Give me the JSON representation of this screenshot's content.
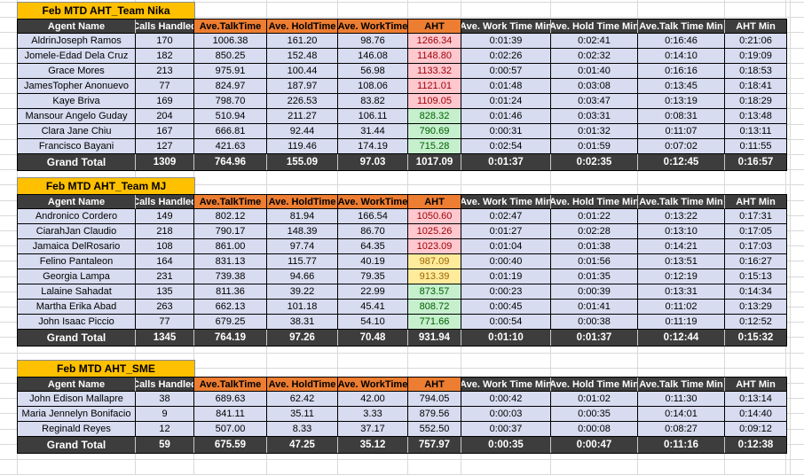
{
  "colors": {
    "title_bg": "#FFC000",
    "orange_header": "#ED7D31",
    "dark_header": "#3D3D3D",
    "row_bg": "#D7DCF0",
    "aht_high_bg": "#FFC7CE",
    "aht_high_text": "#9C0006",
    "aht_mid_bg": "#FFEB9C",
    "aht_mid_text": "#9C6500",
    "aht_low_bg": "#C6EFCE",
    "aht_low_text": "#006100"
  },
  "sheet": {
    "columns": [
      {
        "key": "agent",
        "label": "Agent Name"
      },
      {
        "key": "calls",
        "label": "Calls Handled"
      },
      {
        "key": "talk",
        "label": "Ave.TalkTime"
      },
      {
        "key": "hold",
        "label": "Ave. HoldTime"
      },
      {
        "key": "work",
        "label": "Ave. WorkTime"
      },
      {
        "key": "aht",
        "label": "AHT"
      },
      {
        "key": "work_min",
        "label": "Ave. Work Time Min"
      },
      {
        "key": "hold_min",
        "label": "Ave. Hold Time Min"
      },
      {
        "key": "talk_min",
        "label": "Ave.Talk Time Min"
      },
      {
        "key": "aht_min",
        "label": "AHT Min"
      }
    ],
    "tables": [
      {
        "title": "Feb MTD AHT_Team Nika",
        "rows": [
          {
            "agent": "AldrinJoseph Ramos",
            "calls": "170",
            "talk": "1006.38",
            "hold": "161.20",
            "work": "98.76",
            "aht": "1266.34",
            "aht_level": "high",
            "work_min": "0:01:39",
            "hold_min": "0:02:41",
            "talk_min": "0:16:46",
            "aht_min": "0:21:06"
          },
          {
            "agent": "Jomele-Edad Dela Cruz",
            "calls": "182",
            "talk": "850.25",
            "hold": "152.48",
            "work": "146.08",
            "aht": "1148.80",
            "aht_level": "high",
            "work_min": "0:02:26",
            "hold_min": "0:02:32",
            "talk_min": "0:14:10",
            "aht_min": "0:19:09"
          },
          {
            "agent": "Grace Mores",
            "calls": "213",
            "talk": "975.91",
            "hold": "100.44",
            "work": "56.98",
            "aht": "1133.32",
            "aht_level": "high",
            "work_min": "0:00:57",
            "hold_min": "0:01:40",
            "talk_min": "0:16:16",
            "aht_min": "0:18:53"
          },
          {
            "agent": "JamesTopher Anonuevo",
            "calls": "77",
            "talk": "824.97",
            "hold": "187.97",
            "work": "108.06",
            "aht": "1121.01",
            "aht_level": "high",
            "work_min": "0:01:48",
            "hold_min": "0:03:08",
            "talk_min": "0:13:45",
            "aht_min": "0:18:41"
          },
          {
            "agent": "Kaye Briva",
            "calls": "169",
            "talk": "798.70",
            "hold": "226.53",
            "work": "83.82",
            "aht": "1109.05",
            "aht_level": "high",
            "work_min": "0:01:24",
            "hold_min": "0:03:47",
            "talk_min": "0:13:19",
            "aht_min": "0:18:29"
          },
          {
            "agent": "Mansour Angelo Guday",
            "calls": "204",
            "talk": "510.94",
            "hold": "211.27",
            "work": "106.11",
            "aht": "828.32",
            "aht_level": "low",
            "work_min": "0:01:46",
            "hold_min": "0:03:31",
            "talk_min": "0:08:31",
            "aht_min": "0:13:48"
          },
          {
            "agent": "Clara Jane Chiu",
            "calls": "167",
            "talk": "666.81",
            "hold": "92.44",
            "work": "31.44",
            "aht": "790.69",
            "aht_level": "low",
            "work_min": "0:00:31",
            "hold_min": "0:01:32",
            "talk_min": "0:11:07",
            "aht_min": "0:13:11"
          },
          {
            "agent": "Francisco Bayani",
            "calls": "127",
            "talk": "421.63",
            "hold": "119.46",
            "work": "174.19",
            "aht": "715.28",
            "aht_level": "low",
            "work_min": "0:02:54",
            "hold_min": "0:01:59",
            "talk_min": "0:07:02",
            "aht_min": "0:11:55"
          }
        ],
        "grand_total": {
          "agent": "Grand Total",
          "calls": "1309",
          "talk": "764.96",
          "hold": "155.09",
          "work": "97.03",
          "aht": "1017.09",
          "work_min": "0:01:37",
          "hold_min": "0:02:35",
          "talk_min": "0:12:45",
          "aht_min": "0:16:57"
        }
      },
      {
        "title": "Feb MTD AHT_Team MJ",
        "rows": [
          {
            "agent": "Andronico Cordero",
            "calls": "149",
            "talk": "802.12",
            "hold": "81.94",
            "work": "166.54",
            "aht": "1050.60",
            "aht_level": "high",
            "work_min": "0:02:47",
            "hold_min": "0:01:22",
            "talk_min": "0:13:22",
            "aht_min": "0:17:31"
          },
          {
            "agent": "CiarahJan Claudio",
            "calls": "218",
            "talk": "790.17",
            "hold": "148.39",
            "work": "86.70",
            "aht": "1025.26",
            "aht_level": "high",
            "work_min": "0:01:27",
            "hold_min": "0:02:28",
            "talk_min": "0:13:10",
            "aht_min": "0:17:05"
          },
          {
            "agent": "Jamaica DelRosario",
            "calls": "108",
            "talk": "861.00",
            "hold": "97.74",
            "work": "64.35",
            "aht": "1023.09",
            "aht_level": "high",
            "work_min": "0:01:04",
            "hold_min": "0:01:38",
            "talk_min": "0:14:21",
            "aht_min": "0:17:03"
          },
          {
            "agent": "Felino Pantaleon",
            "calls": "164",
            "talk": "831.13",
            "hold": "115.77",
            "work": "40.19",
            "aht": "987.09",
            "aht_level": "mid",
            "work_min": "0:00:40",
            "hold_min": "0:01:56",
            "talk_min": "0:13:51",
            "aht_min": "0:16:27"
          },
          {
            "agent": "Georgia Lampa",
            "calls": "231",
            "talk": "739.38",
            "hold": "94.66",
            "work": "79.35",
            "aht": "913.39",
            "aht_level": "mid",
            "work_min": "0:01:19",
            "hold_min": "0:01:35",
            "talk_min": "0:12:19",
            "aht_min": "0:15:13"
          },
          {
            "agent": "Lalaine Sahadat",
            "calls": "135",
            "talk": "811.36",
            "hold": "39.22",
            "work": "22.99",
            "aht": "873.57",
            "aht_level": "low",
            "work_min": "0:00:23",
            "hold_min": "0:00:39",
            "talk_min": "0:13:31",
            "aht_min": "0:14:34"
          },
          {
            "agent": "Martha Erika Abad",
            "calls": "263",
            "talk": "662.13",
            "hold": "101.18",
            "work": "45.41",
            "aht": "808.72",
            "aht_level": "low",
            "work_min": "0:00:45",
            "hold_min": "0:01:41",
            "talk_min": "0:11:02",
            "aht_min": "0:13:29"
          },
          {
            "agent": "John Isaac Piccio",
            "calls": "77",
            "talk": "679.25",
            "hold": "38.31",
            "work": "54.10",
            "aht": "771.66",
            "aht_level": "low",
            "work_min": "0:00:54",
            "hold_min": "0:00:38",
            "talk_min": "0:11:19",
            "aht_min": "0:12:52"
          }
        ],
        "grand_total": {
          "agent": "Grand Total",
          "calls": "1345",
          "talk": "764.19",
          "hold": "97.26",
          "work": "70.48",
          "aht": "931.94",
          "work_min": "0:01:10",
          "hold_min": "0:01:37",
          "talk_min": "0:12:44",
          "aht_min": "0:15:32"
        }
      },
      {
        "title": "Feb MTD AHT_SME",
        "rows": [
          {
            "agent": "John Edison Mallapre",
            "calls": "38",
            "talk": "689.63",
            "hold": "62.42",
            "work": "42.00",
            "aht": "794.05",
            "aht_level": "none",
            "work_min": "0:00:42",
            "hold_min": "0:01:02",
            "talk_min": "0:11:30",
            "aht_min": "0:13:14"
          },
          {
            "agent": "Maria Jennelyn Bonifacio",
            "calls": "9",
            "talk": "841.11",
            "hold": "35.11",
            "work": "3.33",
            "aht": "879.56",
            "aht_level": "none",
            "work_min": "0:00:03",
            "hold_min": "0:00:35",
            "talk_min": "0:14:01",
            "aht_min": "0:14:40"
          },
          {
            "agent": "Reginald Reyes",
            "calls": "12",
            "talk": "507.00",
            "hold": "8.33",
            "work": "37.17",
            "aht": "552.50",
            "aht_level": "none",
            "work_min": "0:00:37",
            "hold_min": "0:00:08",
            "talk_min": "0:08:27",
            "aht_min": "0:09:12"
          }
        ],
        "grand_total": {
          "agent": "Grand Total",
          "calls": "59",
          "talk": "675.59",
          "hold": "47.25",
          "work": "35.12",
          "aht": "757.97",
          "work_min": "0:00:35",
          "hold_min": "0:00:47",
          "talk_min": "0:11:16",
          "aht_min": "0:12:38"
        }
      }
    ]
  }
}
